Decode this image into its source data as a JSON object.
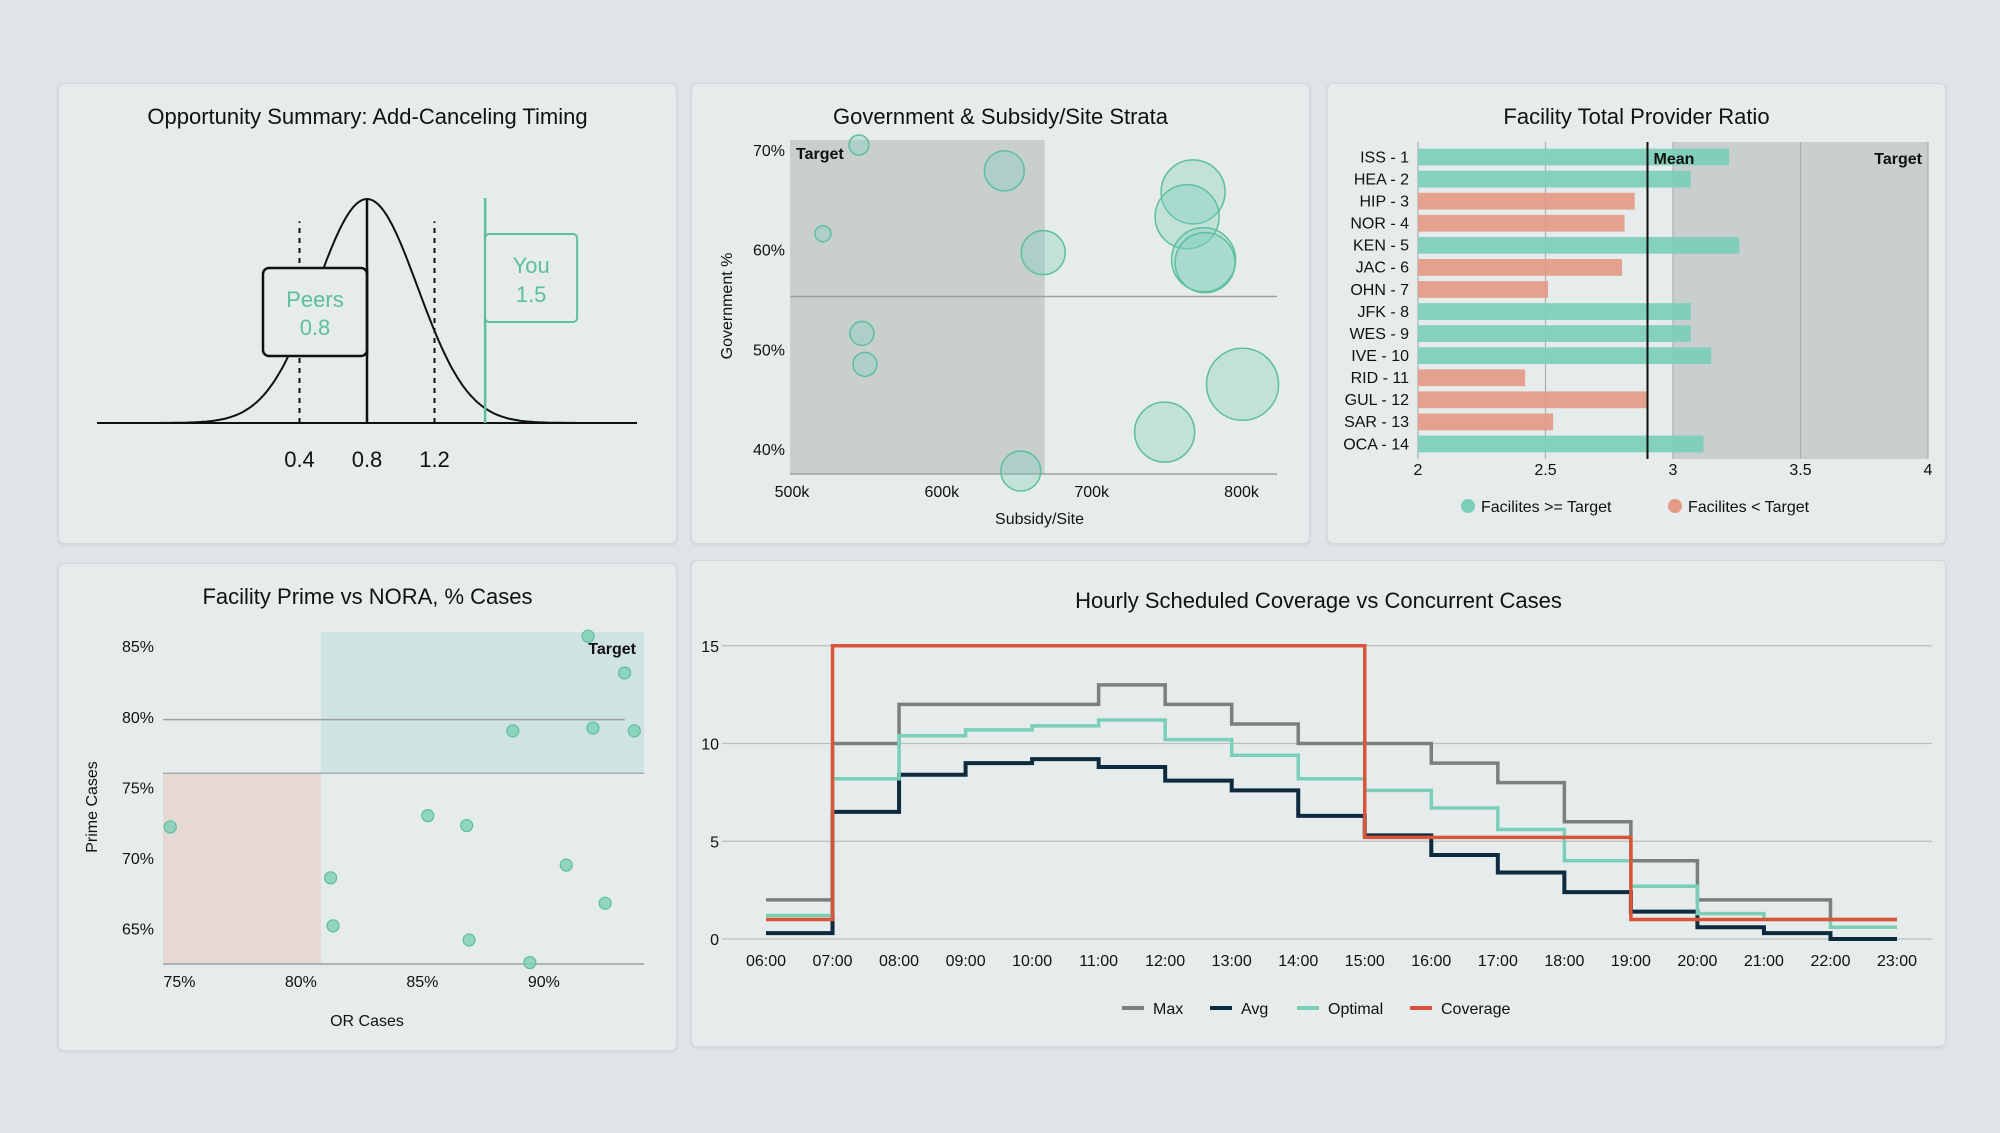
{
  "colors": {
    "teal": "#7ccfb7",
    "teal_dark": "#5dbf9e",
    "salmon": "#e49a86",
    "navy": "#0e2a3f",
    "gray": "#7b7f80",
    "coverage": "#d9553a",
    "shade": "#c9cfcf",
    "pink": "#e6d8d5",
    "tealzone": "#cfe3e2"
  },
  "chart_data": [
    {
      "id": "opportunity",
      "type": "distribution",
      "title": "Opportunity Summary: Add-Canceling Timing",
      "x_ticks": [
        "0.4",
        "0.8",
        "1.2"
      ],
      "x_tick_values": [
        0.4,
        0.8,
        1.2
      ],
      "xlim": [
        -0.8,
        2.4
      ],
      "mean": 0.8,
      "sd": 0.3,
      "dashed_lines": [
        0.4,
        1.2
      ],
      "peers": {
        "label": "Peers",
        "value_label": "0.8",
        "value": 0.8
      },
      "you": {
        "label": "You",
        "value_label": "1.5",
        "value": 1.5
      }
    },
    {
      "id": "gov_subsidy",
      "type": "scatter",
      "title": "Government & Subsidy/Site Strata",
      "xlabel": "Subsidy/Site",
      "ylabel": "Government %",
      "x_ticks": [
        "500k",
        "600k",
        "700k",
        "800k"
      ],
      "x_tick_values": [
        500,
        600,
        700,
        800
      ],
      "y_ticks": [
        "40%",
        "50%",
        "60%",
        "70%"
      ],
      "y_tick_values": [
        40,
        50,
        60,
        70
      ],
      "xlim": [
        500,
        825
      ],
      "ylim": [
        37.5,
        71
      ],
      "target_label": "Target",
      "target_zone": {
        "x": [
          500,
          670
        ],
        "y": [
          37.5,
          71
        ]
      },
      "mean_line_y": 55.3,
      "points": [
        {
          "x": 546,
          "y": 70.5,
          "r": 1
        },
        {
          "x": 522,
          "y": 61.6,
          "r": 0.8
        },
        {
          "x": 643,
          "y": 67.9,
          "r": 2
        },
        {
          "x": 669,
          "y": 59.7,
          "r": 2.2
        },
        {
          "x": 548,
          "y": 51.6,
          "r": 1.2
        },
        {
          "x": 550,
          "y": 48.5,
          "r": 1.2
        },
        {
          "x": 654,
          "y": 37.8,
          "r": 2
        },
        {
          "x": 769,
          "y": 65.8,
          "r": 3.2
        },
        {
          "x": 765,
          "y": 63.3,
          "r": 3.2
        },
        {
          "x": 776,
          "y": 59.0,
          "r": 3.2
        },
        {
          "x": 777,
          "y": 58.7,
          "r": 3.0
        },
        {
          "x": 802,
          "y": 46.5,
          "r": 3.6
        },
        {
          "x": 750,
          "y": 41.7,
          "r": 3.0
        }
      ]
    },
    {
      "id": "provider_ratio",
      "type": "bar",
      "title": "Facility Total Provider Ratio",
      "categories": [
        "ISS - 1",
        "HEA - 2",
        "HIP - 3",
        "NOR - 4",
        "KEN - 5",
        "JAC - 6",
        "OHN - 7",
        "JFK - 8",
        "WES - 9",
        "IVE - 10",
        "RID - 11",
        "GUL - 12",
        "SAR - 13",
        "OCA - 14"
      ],
      "values": [
        3.22,
        3.07,
        2.85,
        2.81,
        3.26,
        2.8,
        2.51,
        3.07,
        3.07,
        3.15,
        2.42,
        2.9,
        2.53,
        3.12
      ],
      "above_target": [
        true,
        true,
        false,
        false,
        true,
        false,
        false,
        true,
        true,
        true,
        false,
        false,
        false,
        true
      ],
      "x_ticks": [
        "2",
        "2.5",
        "3",
        "3.5",
        "4"
      ],
      "x_tick_values": [
        2,
        2.5,
        3,
        3.5,
        4
      ],
      "xlim": [
        2,
        4
      ],
      "mean": 2.9,
      "mean_label": "Mean",
      "target_start": 3.0,
      "target_label": "Target",
      "legend": [
        "Facilites >= Target",
        "Facilites < Target"
      ]
    },
    {
      "id": "prime_nora",
      "type": "scatter",
      "title": "Facility Prime vs NORA, % Cases",
      "xlabel": "OR Cases",
      "ylabel": "Prime Cases",
      "x_ticks": [
        "75%",
        "80%",
        "85%",
        "90%"
      ],
      "x_tick_values": [
        75,
        80,
        85,
        90
      ],
      "y_ticks": [
        "65%",
        "70%",
        "75%",
        "80%",
        "85%"
      ],
      "y_tick_values": [
        65,
        70,
        75,
        80,
        85
      ],
      "xlim": [
        73.5,
        93.3
      ],
      "ylim": [
        62.5,
        86
      ],
      "target_label": "Target",
      "target_zone": {
        "x": [
          80,
          93.3
        ],
        "y": [
          76,
          86
        ]
      },
      "low_zone": {
        "x": [
          73.5,
          80
        ],
        "y": [
          62.5,
          76
        ]
      },
      "ref_line_y": 79.8,
      "points": [
        {
          "x": 73.8,
          "y": 72.2
        },
        {
          "x": 80.4,
          "y": 68.6
        },
        {
          "x": 80.5,
          "y": 65.2
        },
        {
          "x": 84.4,
          "y": 73.0
        },
        {
          "x": 86.0,
          "y": 72.3
        },
        {
          "x": 86.1,
          "y": 64.2
        },
        {
          "x": 87.9,
          "y": 79.0
        },
        {
          "x": 88.6,
          "y": 62.6
        },
        {
          "x": 90.1,
          "y": 69.5
        },
        {
          "x": 91.0,
          "y": 85.7
        },
        {
          "x": 91.2,
          "y": 79.2
        },
        {
          "x": 91.7,
          "y": 66.8
        },
        {
          "x": 92.5,
          "y": 83.1
        },
        {
          "x": 92.9,
          "y": 79.0
        }
      ]
    },
    {
      "id": "hourly",
      "type": "line",
      "step": true,
      "title": "Hourly Scheduled Coverage vs Concurrent Cases",
      "categories": [
        "06:00",
        "07:00",
        "08:00",
        "09:00",
        "10:00",
        "11:00",
        "12:00",
        "13:00",
        "14:00",
        "15:00",
        "16:00",
        "17:00",
        "18:00",
        "19:00",
        "20:00",
        "21:00",
        "22:00",
        "23:00"
      ],
      "y_ticks": [
        "0",
        "5",
        "10",
        "15"
      ],
      "y_tick_values": [
        0,
        5,
        10,
        15
      ],
      "ylim": [
        0,
        15.5
      ],
      "series": [
        {
          "name": "Max",
          "color": "#7b7f80",
          "values": [
            2.0,
            10.0,
            12.0,
            12.0,
            12.0,
            13.0,
            12.0,
            11.0,
            10.0,
            10.0,
            9.0,
            8.0,
            6.0,
            4.0,
            2.0,
            2.0,
            1.0,
            1.0
          ]
        },
        {
          "name": "Avg",
          "color": "#0e2a3f",
          "values": [
            0.3,
            6.5,
            8.4,
            9.0,
            9.2,
            8.8,
            8.1,
            7.6,
            6.3,
            5.3,
            4.3,
            3.4,
            2.4,
            1.4,
            0.6,
            0.3,
            0.0,
            0.0
          ]
        },
        {
          "name": "Optimal",
          "color": "#7ccfb7",
          "values": [
            1.2,
            8.2,
            10.4,
            10.7,
            10.9,
            11.2,
            10.2,
            9.4,
            8.2,
            7.6,
            6.7,
            5.6,
            4.0,
            2.7,
            1.3,
            1.0,
            0.6,
            0.6
          ]
        },
        {
          "name": "Coverage",
          "color": "#d9553a",
          "values": [
            1.0,
            15.0,
            15.0,
            15.0,
            15.0,
            15.0,
            15.0,
            15.0,
            15.0,
            5.2,
            5.2,
            5.2,
            5.2,
            1.0,
            1.0,
            1.0,
            1.0,
            1.0
          ]
        }
      ]
    }
  ]
}
